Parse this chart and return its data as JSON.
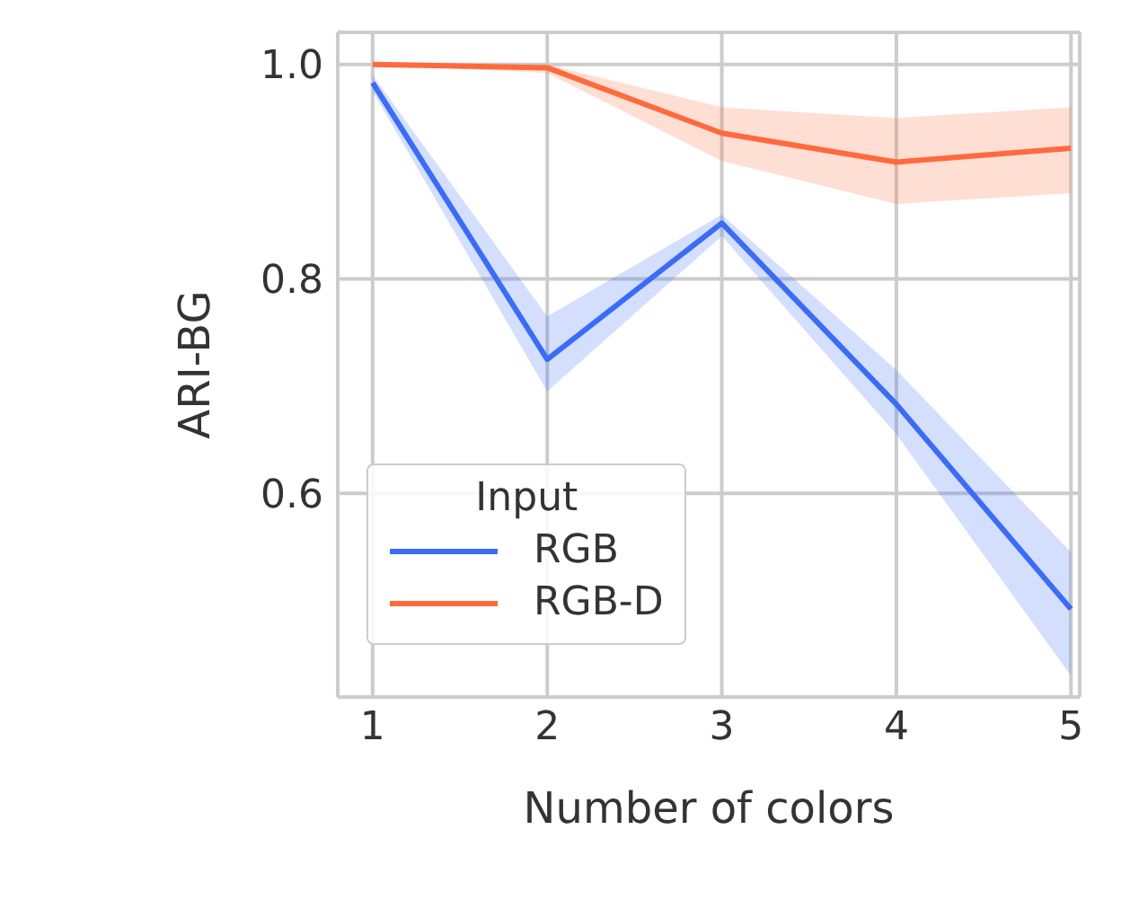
{
  "chart_data": {
    "type": "line",
    "xlabel": "Number of colors",
    "ylabel": "ARI-BG",
    "legend_title": "Input",
    "x": [
      1,
      2,
      3,
      4,
      5
    ],
    "series": [
      {
        "name": "RGB",
        "color": "#3b6cf6",
        "values": [
          0.983,
          0.725,
          0.852,
          0.683,
          0.492
        ],
        "lower": [
          0.975,
          0.695,
          0.84,
          0.655,
          0.43
        ],
        "upper": [
          0.99,
          0.765,
          0.86,
          0.715,
          0.545
        ]
      },
      {
        "name": "RGB-D",
        "color": "#ff6a3d",
        "values": [
          1.0,
          0.997,
          0.936,
          0.909,
          0.922
        ],
        "lower": [
          1.0,
          0.992,
          0.91,
          0.87,
          0.88
        ],
        "upper": [
          1.0,
          1.0,
          0.96,
          0.95,
          0.96
        ]
      }
    ],
    "xlim": [
      0.8,
      5.05
    ],
    "xticks": [
      1,
      2,
      3,
      4,
      5
    ],
    "ylim": [
      0.41,
      1.03
    ],
    "yticks": [
      {
        "value": 0.6,
        "label": "0.6"
      },
      {
        "value": 0.8,
        "label": "0.8"
      },
      {
        "value": 1,
        "label": "1.0"
      }
    ],
    "grid": true,
    "legend": "bottom left",
    "marker": "none",
    "line_style": "solid"
  }
}
